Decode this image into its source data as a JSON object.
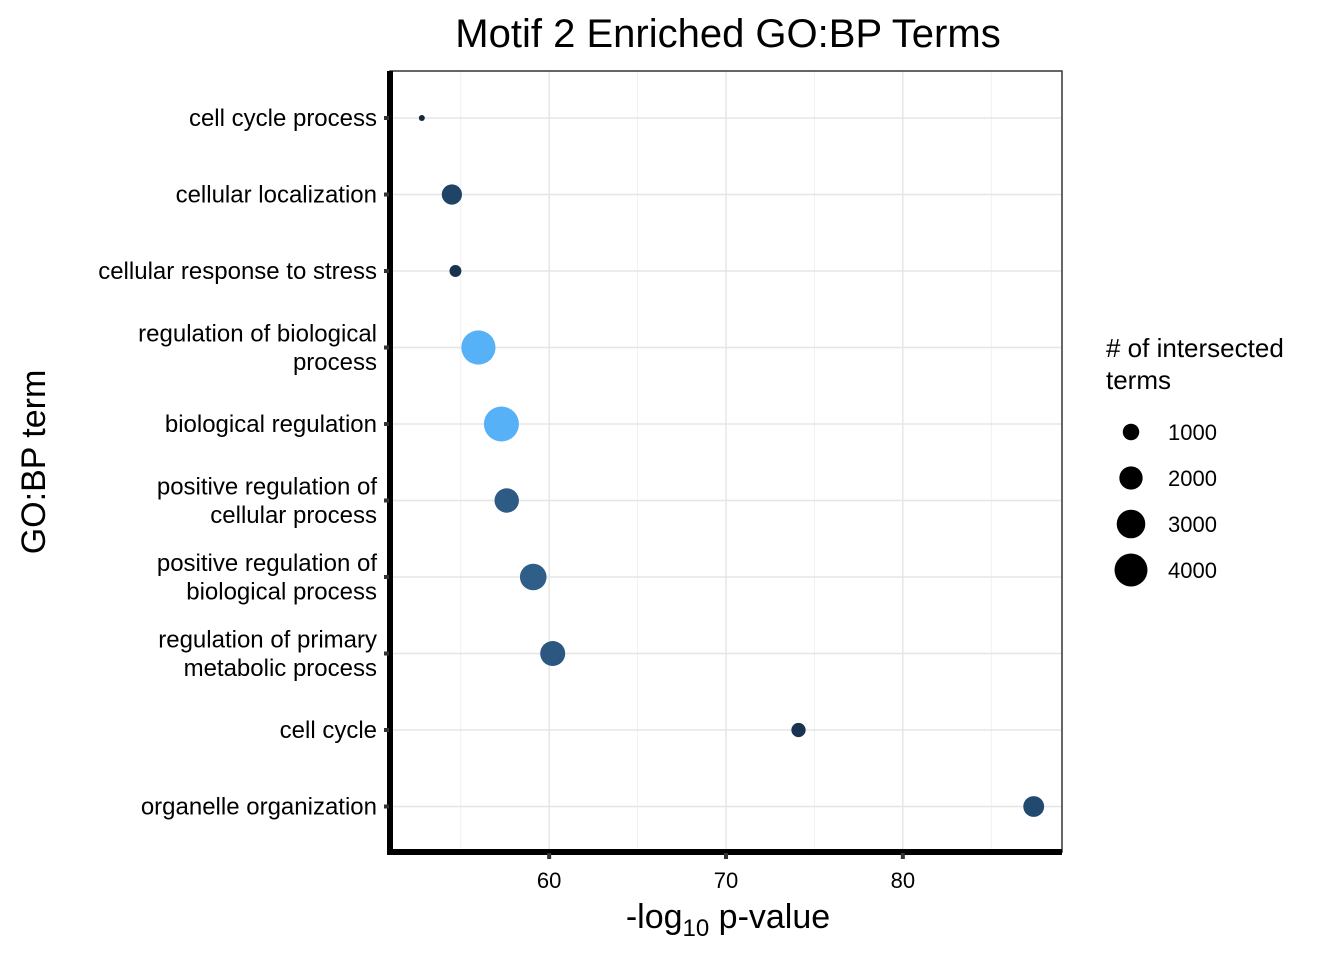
{
  "chart_data": {
    "type": "scatter",
    "title": "Motif 2 Enriched GO:BP Terms",
    "xlabel_main": "-log",
    "xlabel_sub": "10",
    "xlabel_rest": " p-value",
    "ylabel": "GO:BP term",
    "xlim": [
      51,
      89
    ],
    "xticks": [
      60,
      70,
      80
    ],
    "grid": true,
    "legend": {
      "title_lines": [
        "# of intersected",
        " terms"
      ],
      "placement": "right",
      "entries": [
        {
          "label": "1000",
          "size": 1000
        },
        {
          "label": "2000",
          "size": 2000
        },
        {
          "label": "3000",
          "size": 3000
        },
        {
          "label": "4000",
          "size": 4000
        }
      ]
    },
    "points": [
      {
        "term_lines": [
          "cell cycle process"
        ],
        "x": 52.8,
        "size": 120,
        "color": "#13293d"
      },
      {
        "term_lines": [
          "cellular localization"
        ],
        "x": 54.5,
        "size": 1500,
        "color": "#1f4466"
      },
      {
        "term_lines": [
          "cellular response to stress"
        ],
        "x": 54.7,
        "size": 520,
        "color": "#183450"
      },
      {
        "term_lines": [
          "regulation of biological",
          "process"
        ],
        "x": 56.0,
        "size": 4300,
        "color": "#56b1f7"
      },
      {
        "term_lines": [
          "biological regulation"
        ],
        "x": 57.3,
        "size": 4500,
        "color": "#56b1f7"
      },
      {
        "term_lines": [
          "positive regulation of",
          "cellular process"
        ],
        "x": 57.6,
        "size": 2200,
        "color": "#2e5b85"
      },
      {
        "term_lines": [
          "positive regulation of",
          "biological process"
        ],
        "x": 59.1,
        "size": 2600,
        "color": "#2f5e89"
      },
      {
        "term_lines": [
          "regulation of primary",
          "metabolic process"
        ],
        "x": 60.2,
        "size": 2300,
        "color": "#2c5781"
      },
      {
        "term_lines": [
          "cell cycle"
        ],
        "x": 74.1,
        "size": 750,
        "color": "#183450"
      },
      {
        "term_lines": [
          "organelle organization"
        ],
        "x": 87.4,
        "size": 1600,
        "color": "#224a70"
      }
    ]
  }
}
